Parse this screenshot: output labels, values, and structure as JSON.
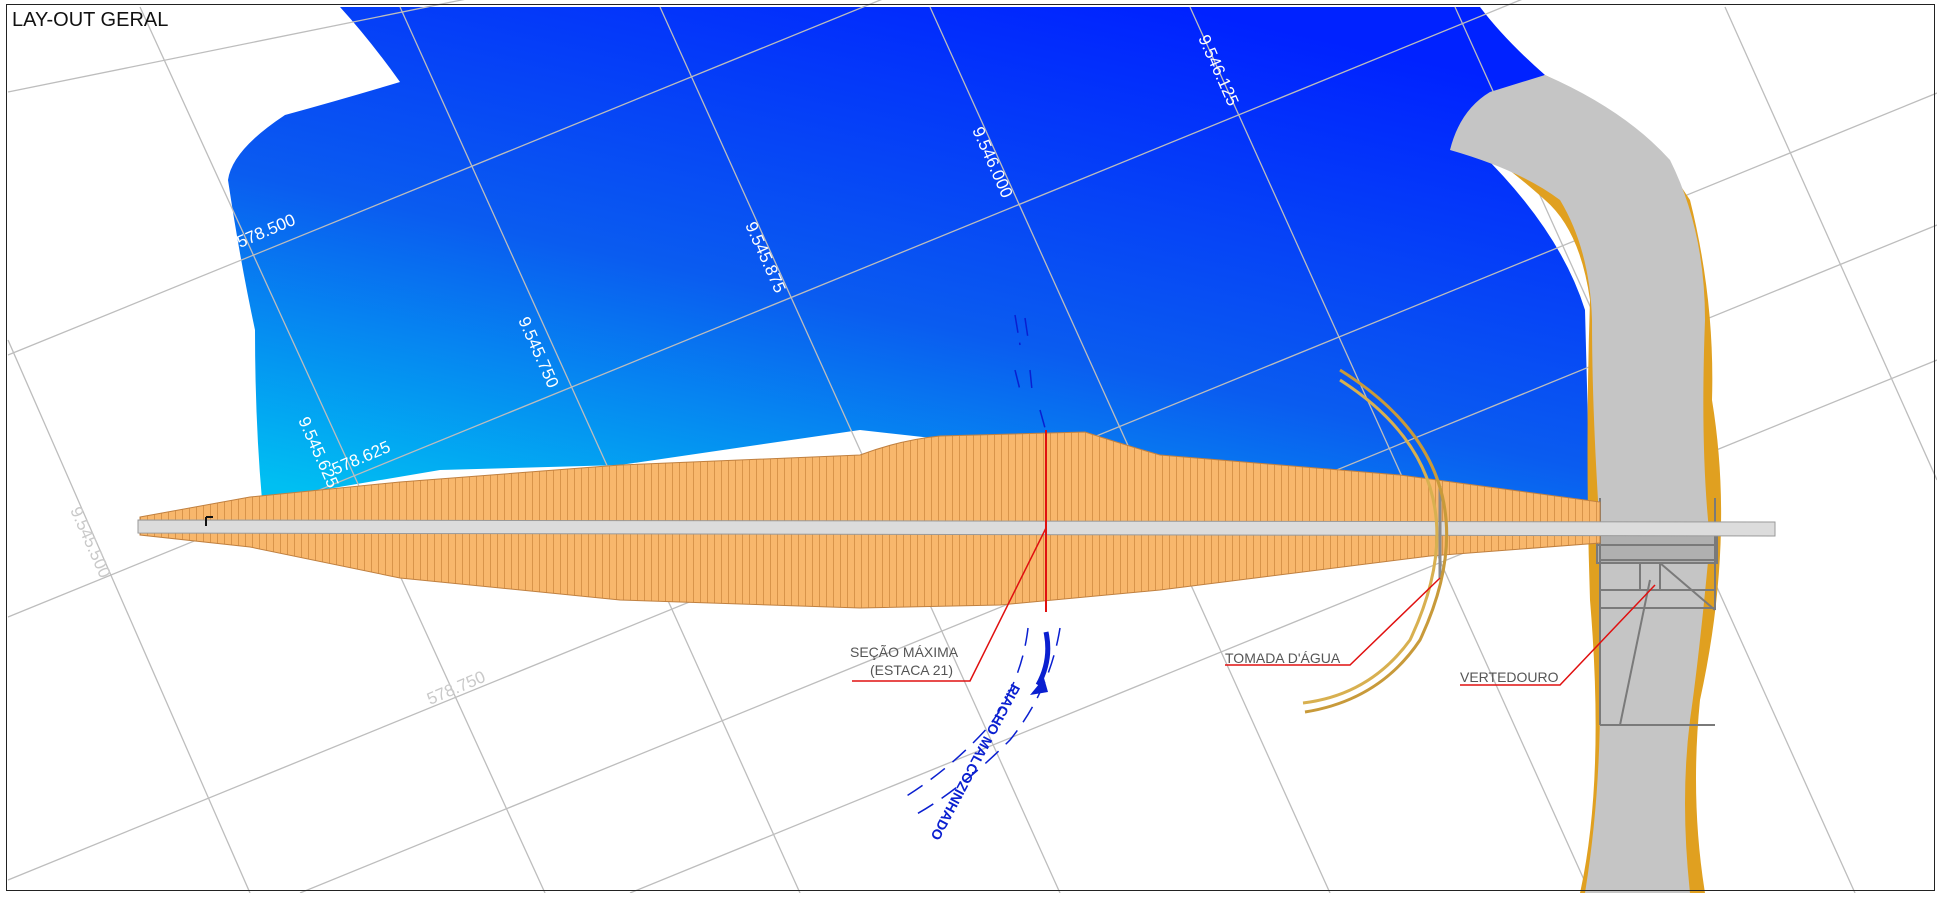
{
  "title": "LAY-OUT GERAL",
  "grid_labels": {
    "g578500": "578.500",
    "g578625": "578.625",
    "g578750": "578.750",
    "g9545500": "9.545.500",
    "g9545625": "9.545.625",
    "g9545750": "9.545.750",
    "g9545875": "9.545.875",
    "g9546000": "9.546.000",
    "g9546125": "9.546.125"
  },
  "callouts": {
    "secao_maxima_l1": "SEÇÃO MÁXIMA",
    "secao_maxima_l2": "(ESTACA 21)",
    "tomada": "TOMADA D'ÁGUA",
    "vertedouro": "VERTEDOURO",
    "riacho": "RIACHO MALCOZINHADO"
  },
  "colors": {
    "reservoir_dark": "#0024ff",
    "reservoir_light": "#00b4f0",
    "embankment": "#f7b76a",
    "crest": "#d9d9d9",
    "spillway_channel": "#c5c5c5",
    "channel_edge": "#e0a020",
    "leader_lines": "#e01010",
    "stream": "#0a1fd0"
  }
}
